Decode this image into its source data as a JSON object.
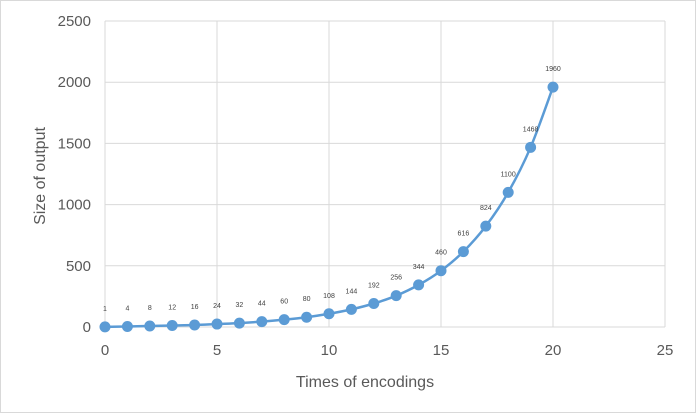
{
  "chart_data": {
    "type": "scatter",
    "title": "",
    "xlabel": "Times of encodings",
    "ylabel": "Size of output",
    "xlim": [
      0,
      25
    ],
    "ylim": [
      0,
      2500
    ],
    "xticks": [
      0,
      5,
      10,
      15,
      20,
      25
    ],
    "yticks": [
      0,
      500,
      1000,
      1500,
      2000,
      2500
    ],
    "grid": true,
    "smooth_line": true,
    "series_color": "#5b9bd5",
    "series": [
      {
        "x": [
          0,
          1,
          2,
          3,
          4,
          5,
          6,
          7,
          8,
          9,
          10,
          11,
          12,
          13,
          14,
          15,
          16,
          17,
          18,
          19,
          20
        ],
        "y": [
          1,
          4,
          8,
          12,
          16,
          24,
          32,
          44,
          60,
          80,
          108,
          144,
          192,
          256,
          344,
          460,
          616,
          824,
          1100,
          1468,
          1960
        ],
        "labels": [
          "1",
          "4",
          "8",
          "12",
          "16",
          "24",
          "32",
          "44",
          "60",
          "80",
          "108",
          "144",
          "192",
          "256",
          "344",
          "460",
          "616",
          "824",
          "1100",
          "1468",
          "1960"
        ]
      }
    ]
  }
}
